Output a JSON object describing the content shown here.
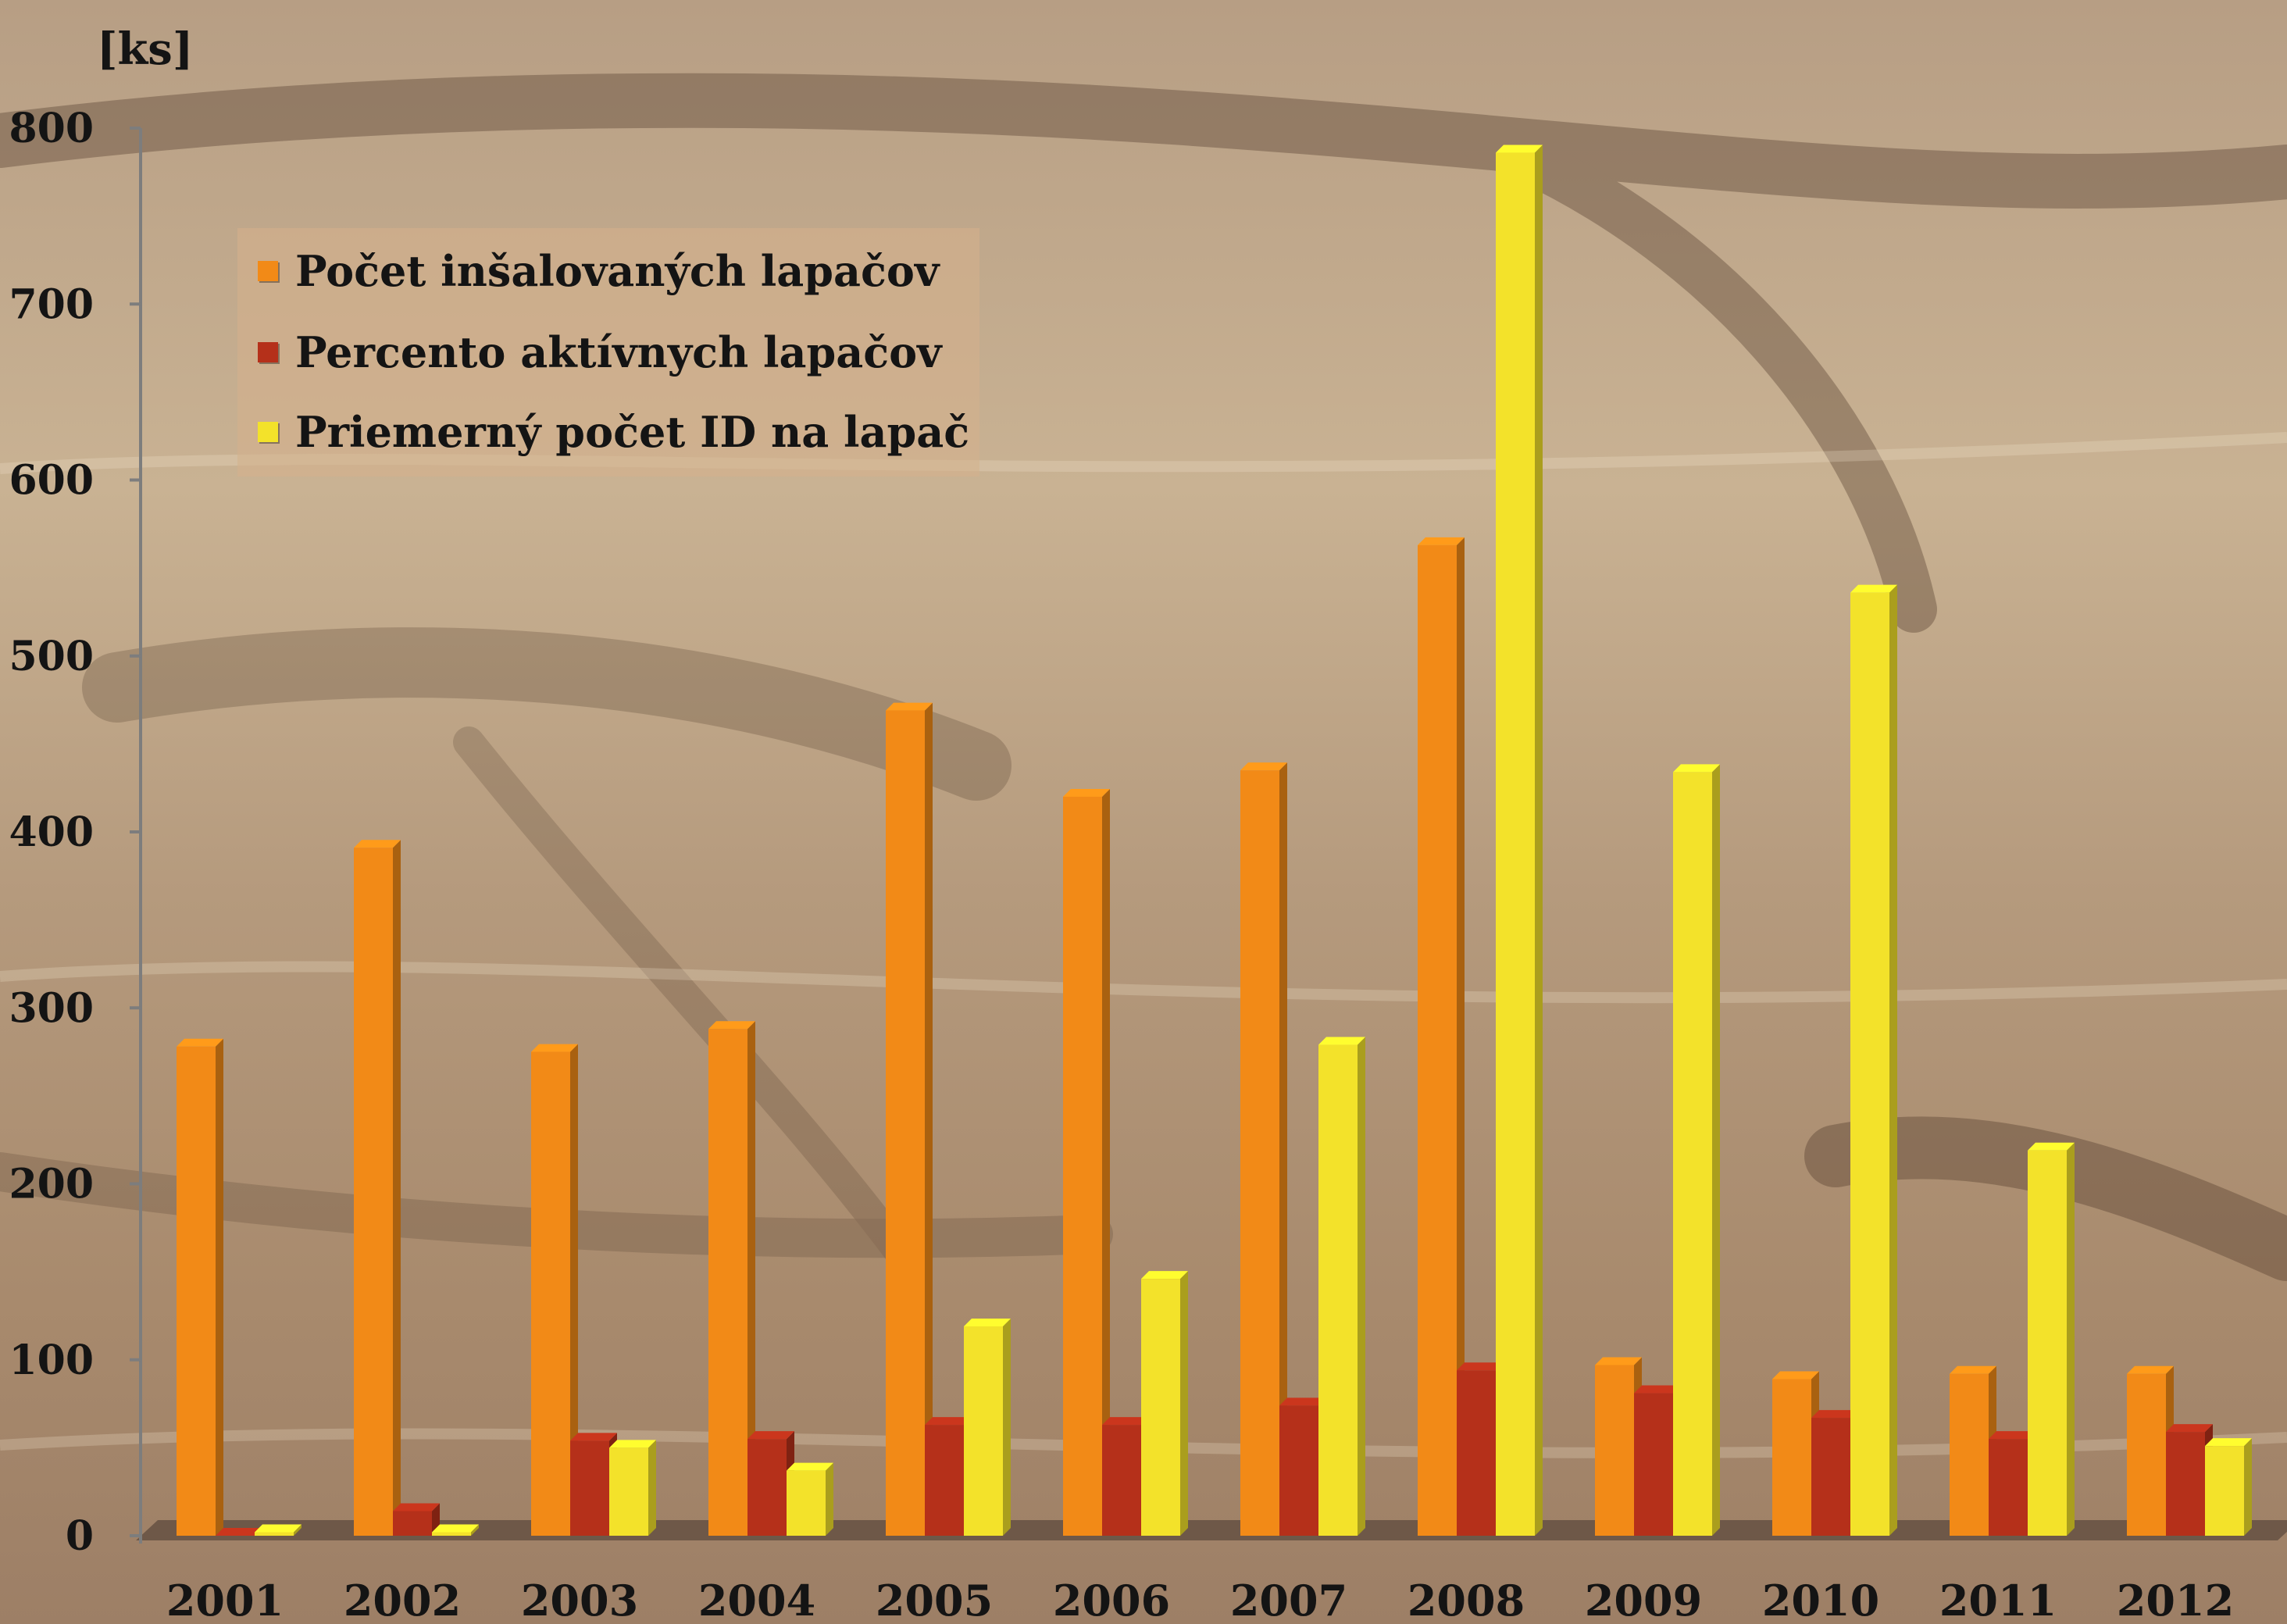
{
  "chart_data": {
    "type": "bar",
    "ylabel": "[ks]",
    "ylim": [
      0,
      800
    ],
    "yticks": [
      "0",
      "100",
      "200",
      "300",
      "400",
      "500",
      "600",
      "700",
      "800"
    ],
    "categories": [
      "2001",
      "2002",
      "2003",
      "2004",
      "2005",
      "2006",
      "2007",
      "2008",
      "2009",
      "2010",
      "2011",
      "2012"
    ],
    "series": [
      {
        "name": "Počet inšalovaných lapačov",
        "color": "#f28a17",
        "values": [
          278,
          391,
          275,
          288,
          469,
          420,
          435,
          563,
          97,
          89,
          92,
          92
        ]
      },
      {
        "name": "Percento aktívnych lapačov",
        "color": "#b5301a",
        "values": [
          0,
          14,
          54,
          55,
          63,
          63,
          74,
          94,
          81,
          67,
          55,
          59
        ]
      },
      {
        "name": "Priemerný počet ID na lapač",
        "color": "#f3e22a",
        "values": [
          2,
          2,
          50,
          37,
          119,
          146,
          279,
          786,
          434,
          536,
          219,
          51
        ]
      }
    ],
    "legend_position": "top-left",
    "grid": false,
    "three_d": true
  }
}
